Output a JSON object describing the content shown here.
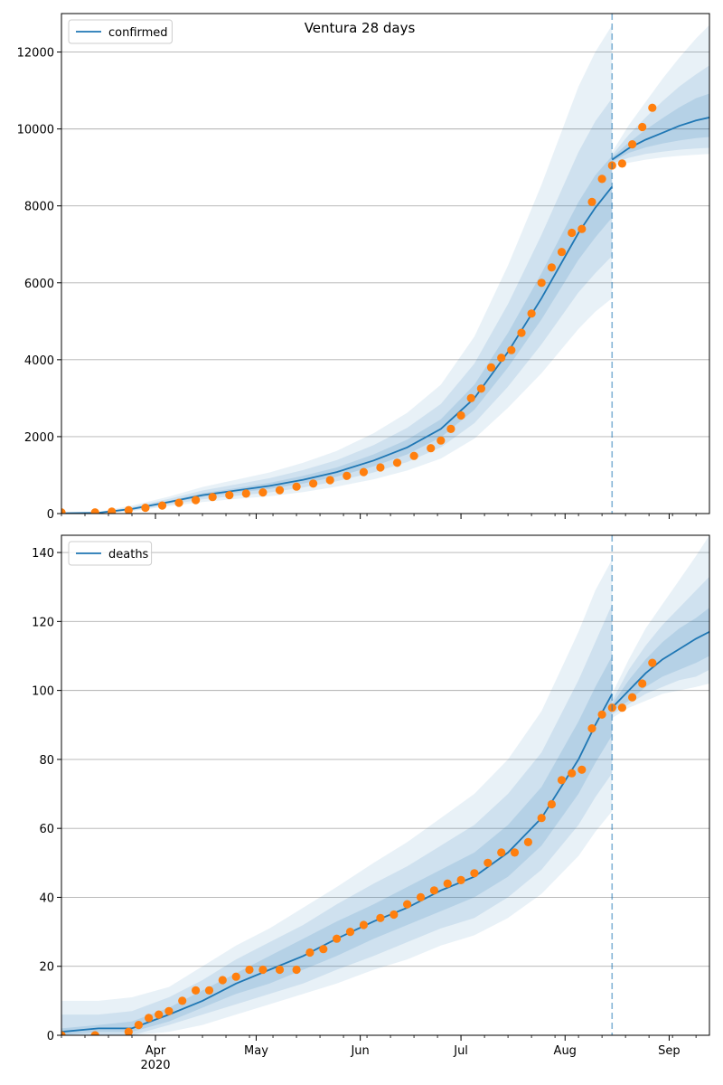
{
  "figure_title": "Ventura 28 days",
  "colors": {
    "model_line": "#1f77b4",
    "observed": "#ff7f0e",
    "band": "#1f77b4",
    "grid": "#b0b0b0",
    "vline": "#1f77b4"
  },
  "x_axis": {
    "ticks": [
      {
        "date": "2020-04-01",
        "label": "Apr",
        "sublabel": "2020"
      },
      {
        "date": "2020-05-01",
        "label": "May"
      },
      {
        "date": "2020-06-01",
        "label": "Jun"
      },
      {
        "date": "2020-07-01",
        "label": "Jul"
      },
      {
        "date": "2020-08-01",
        "label": "Aug"
      },
      {
        "date": "2020-09-01",
        "label": "Sep"
      }
    ],
    "range": [
      "2020-03-04",
      "2020-09-13"
    ]
  },
  "forecast_start": "2020-08-15",
  "chart_data": [
    {
      "type": "line",
      "legend": "confirmed",
      "legend_placement": "top-left",
      "grid": "y",
      "ylim": [
        0,
        13000
      ],
      "yticks": [
        0,
        2000,
        4000,
        6000,
        8000,
        10000,
        12000
      ],
      "model": {
        "x": [
          "2020-03-04",
          "2020-03-15",
          "2020-03-25",
          "2020-04-05",
          "2020-04-15",
          "2020-04-25",
          "2020-05-05",
          "2020-05-15",
          "2020-05-25",
          "2020-06-05",
          "2020-06-15",
          "2020-06-25",
          "2020-07-05",
          "2020-07-15",
          "2020-07-25",
          "2020-08-05",
          "2020-08-10",
          "2020-08-15"
        ],
        "y": [
          10,
          20,
          120,
          300,
          480,
          600,
          720,
          880,
          1080,
          1380,
          1720,
          2200,
          3000,
          4200,
          5600,
          7300,
          7950,
          8500
        ],
        "bands": [
          {
            "level": "inner",
            "low": [
              5,
              15,
              100,
              270,
              430,
              540,
              640,
              780,
              960,
              1230,
              1540,
              1980,
              2700,
              3800,
              5050,
              6600,
              7180,
              7700
            ],
            "high": [
              15,
              25,
              140,
              330,
              530,
              660,
              800,
              980,
              1200,
              1540,
              1920,
              2450,
              3350,
              4700,
              6250,
              8100,
              8800,
              9300
            ]
          },
          {
            "level": "middle",
            "low": [
              3,
              12,
              80,
              230,
              370,
              460,
              550,
              680,
              840,
              1070,
              1340,
              1720,
              2350,
              3300,
              4400,
              5750,
              6250,
              6700
            ],
            "high": [
              18,
              30,
              170,
              380,
              600,
              760,
              920,
              1130,
              1390,
              1780,
              2230,
              2850,
              3900,
              5450,
              7250,
              9400,
              10200,
              10800
            ]
          },
          {
            "level": "outer",
            "low": [
              1,
              8,
              60,
              190,
              300,
              380,
              450,
              560,
              700,
              890,
              1120,
              1430,
              1950,
              2750,
              3650,
              4800,
              5250,
              5600
            ],
            "high": [
              22,
              40,
              210,
              440,
              690,
              880,
              1070,
              1320,
              1630,
              2090,
              2620,
              3350,
              4600,
              6450,
              8550,
              11100,
              12000,
              12700
            ]
          }
        ]
      },
      "forecast": {
        "x": [
          "2020-08-15",
          "2020-08-20",
          "2020-08-25",
          "2020-08-30",
          "2020-09-04",
          "2020-09-09",
          "2020-09-13"
        ],
        "y": [
          9200,
          9500,
          9720,
          9900,
          10080,
          10220,
          10300
        ],
        "bands": [
          {
            "level": "inner",
            "low": [
              9150,
              9380,
              9520,
              9620,
              9700,
              9760,
              9790
            ],
            "high": [
              9260,
              9650,
              9980,
              10280,
              10560,
              10800,
              10920
            ]
          },
          {
            "level": "middle",
            "low": [
              9100,
              9250,
              9350,
              9410,
              9460,
              9490,
              9510
            ],
            "high": [
              9320,
              9850,
              10300,
              10720,
              11100,
              11420,
              11650
            ]
          },
          {
            "level": "outer",
            "low": [
              9050,
              9120,
              9200,
              9260,
              9300,
              9330,
              9350
            ],
            "high": [
              9400,
              10100,
              10700,
              11300,
              11850,
              12350,
              12700
            ]
          }
        ]
      },
      "observed": {
        "x": [
          "2020-03-04",
          "2020-03-14",
          "2020-03-19",
          "2020-03-24",
          "2020-03-29",
          "2020-04-03",
          "2020-04-08",
          "2020-04-13",
          "2020-04-18",
          "2020-04-23",
          "2020-04-28",
          "2020-05-03",
          "2020-05-08",
          "2020-05-13",
          "2020-05-18",
          "2020-05-23",
          "2020-05-28",
          "2020-06-02",
          "2020-06-07",
          "2020-06-12",
          "2020-06-17",
          "2020-06-22",
          "2020-06-25",
          "2020-06-28",
          "2020-07-01",
          "2020-07-04",
          "2020-07-07",
          "2020-07-10",
          "2020-07-13",
          "2020-07-16",
          "2020-07-19",
          "2020-07-22",
          "2020-07-25",
          "2020-07-28",
          "2020-07-31",
          "2020-08-03",
          "2020-08-06",
          "2020-08-09",
          "2020-08-12",
          "2020-08-15",
          "2020-08-18",
          "2020-08-21",
          "2020-08-24",
          "2020-08-27"
        ],
        "y": [
          30,
          30,
          50,
          90,
          150,
          210,
          280,
          350,
          430,
          480,
          520,
          550,
          610,
          700,
          780,
          870,
          980,
          1080,
          1200,
          1320,
          1500,
          1700,
          1900,
          2200,
          2550,
          3000,
          3250,
          3800,
          4050,
          4250,
          4700,
          5200,
          6000,
          6400,
          6800,
          7300,
          7400,
          8100,
          8700,
          9050,
          9100,
          9600,
          10050,
          10550
        ]
      }
    },
    {
      "type": "line",
      "legend": "deaths",
      "legend_placement": "top-left",
      "grid": "y",
      "ylim": [
        0,
        145
      ],
      "yticks": [
        0,
        20,
        40,
        60,
        80,
        100,
        120,
        140
      ],
      "model": {
        "x": [
          "2020-03-04",
          "2020-03-15",
          "2020-03-25",
          "2020-04-05",
          "2020-04-15",
          "2020-04-25",
          "2020-05-05",
          "2020-05-15",
          "2020-05-25",
          "2020-06-05",
          "2020-06-15",
          "2020-06-25",
          "2020-07-05",
          "2020-07-15",
          "2020-07-25",
          "2020-08-05",
          "2020-08-10",
          "2020-08-15"
        ],
        "y": [
          1,
          2,
          2,
          6,
          10,
          15,
          19,
          23,
          28,
          33,
          37,
          42,
          46,
          53,
          63,
          80,
          90,
          99
        ],
        "bands": [
          {
            "level": "inner",
            "low": [
              0,
              1,
              1,
              4,
              8,
              12,
              15,
              19,
              23,
              28,
              32,
              36,
              40,
              46,
              55,
              70,
              79,
              87
            ],
            "high": [
              2,
              3,
              4,
              8,
              13,
              18,
              23,
              28,
              33,
              38,
              43,
              48,
              53,
              61,
              72,
              91,
              101,
              110
            ]
          },
          {
            "level": "middle",
            "low": [
              0,
              0,
              0,
              3,
              6,
              9,
              12,
              15,
              19,
              23,
              27,
              31,
              34,
              40,
              48,
              61,
              69,
              76
            ],
            "high": [
              6,
              6,
              7,
              11,
              16,
              22,
              27,
              32,
              38,
              44,
              49,
              55,
              61,
              70,
              82,
              103,
              114,
              125
            ]
          },
          {
            "level": "outer",
            "low": [
              0,
              0,
              0,
              1,
              3,
              6,
              9,
              12,
              15,
              19,
              22,
              26,
              29,
              34,
              41,
              52,
              59,
              65
            ],
            "high": [
              10,
              10,
              11,
              14,
              20,
              26,
              31,
              37,
              43,
              50,
              56,
              63,
              70,
              80,
              94,
              117,
              129,
              138
            ]
          }
        ]
      },
      "forecast": {
        "x": [
          "2020-08-15",
          "2020-08-20",
          "2020-08-25",
          "2020-08-30",
          "2020-09-04",
          "2020-09-09",
          "2020-09-13"
        ],
        "y": [
          95,
          100,
          105,
          109,
          112,
          115,
          117
        ],
        "bands": [
          {
            "level": "inner",
            "low": [
              94,
              97,
              101,
              104,
              106,
              108,
              110
            ],
            "high": [
              96,
              103,
              109,
              114,
              118,
              121,
              124
            ]
          },
          {
            "level": "middle",
            "low": [
              93,
              96,
              99,
              101,
              103,
              104,
              106
            ],
            "high": [
              97,
              106,
              113,
              119,
              124,
              129,
              133
            ]
          },
          {
            "level": "outer",
            "low": [
              92,
              95,
              97,
              99,
              100,
              101,
              102
            ],
            "high": [
              99,
              109,
              118,
              125,
              132,
              139,
              145
            ]
          }
        ]
      },
      "observed": {
        "x": [
          "2020-03-04",
          "2020-03-14",
          "2020-03-24",
          "2020-03-27",
          "2020-03-30",
          "2020-04-02",
          "2020-04-05",
          "2020-04-09",
          "2020-04-13",
          "2020-04-17",
          "2020-04-21",
          "2020-04-25",
          "2020-04-29",
          "2020-05-03",
          "2020-05-08",
          "2020-05-13",
          "2020-05-17",
          "2020-05-21",
          "2020-05-25",
          "2020-05-29",
          "2020-06-02",
          "2020-06-07",
          "2020-06-11",
          "2020-06-15",
          "2020-06-19",
          "2020-06-23",
          "2020-06-27",
          "2020-07-01",
          "2020-07-05",
          "2020-07-09",
          "2020-07-13",
          "2020-07-17",
          "2020-07-21",
          "2020-07-25",
          "2020-07-28",
          "2020-07-31",
          "2020-08-03",
          "2020-08-06",
          "2020-08-09",
          "2020-08-12",
          "2020-08-15",
          "2020-08-18",
          "2020-08-21",
          "2020-08-24",
          "2020-08-27"
        ],
        "y": [
          0,
          0,
          1,
          3,
          5,
          6,
          7,
          10,
          13,
          13,
          16,
          17,
          19,
          19,
          19,
          19,
          24,
          25,
          28,
          30,
          32,
          34,
          35,
          38,
          40,
          42,
          44,
          45,
          47,
          50,
          53,
          53,
          56,
          63,
          67,
          74,
          76,
          77,
          89,
          93,
          95,
          95,
          98,
          102,
          108
        ]
      }
    }
  ]
}
